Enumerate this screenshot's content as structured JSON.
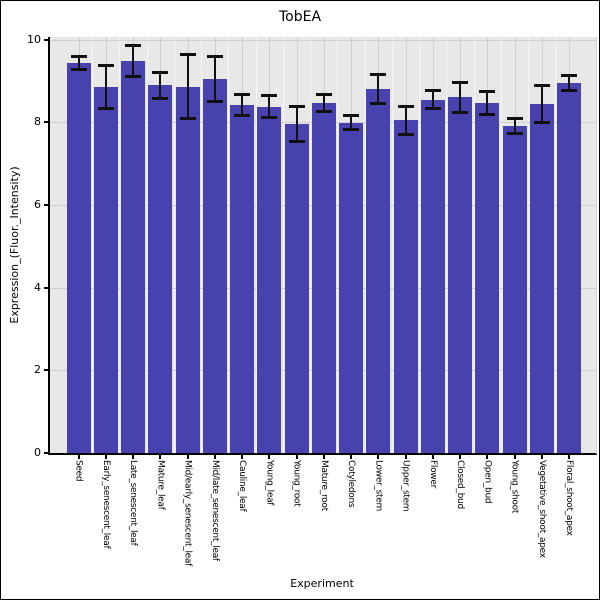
{
  "chart_data": {
    "type": "bar",
    "title": "TobEA",
    "xlabel": "Experiment",
    "ylabel": "Expression_(Fluor._Intensity)",
    "categories": [
      "Seed",
      "Early_senescent_leaf",
      "Late_senescent_leaf",
      "Mature_leaf",
      "Mid/early_senescent_leaf",
      "Mid/late_senescent_leaf",
      "Cauline_leaf",
      "Young_leaf",
      "Young_root",
      "Mature_root",
      "Cotyledons",
      "Lower_stem",
      "Upper_stem",
      "Flower",
      "Closed_bud",
      "Open_bud",
      "Young_shoot",
      "Vegetative_shoot_apex",
      "Floral_shoot_apex"
    ],
    "values": [
      9.43,
      8.86,
      9.48,
      8.89,
      8.86,
      9.05,
      8.42,
      8.38,
      7.96,
      8.46,
      7.99,
      8.81,
      8.05,
      8.54,
      8.6,
      8.46,
      7.91,
      8.44,
      8.94
    ],
    "errors": [
      0.17,
      0.53,
      0.39,
      0.32,
      0.78,
      0.55,
      0.26,
      0.28,
      0.43,
      0.21,
      0.19,
      0.36,
      0.35,
      0.23,
      0.37,
      0.29,
      0.2,
      0.46,
      0.19
    ],
    "ylim": [
      0,
      10.1
    ],
    "yticks": [
      0,
      2,
      4,
      6,
      8,
      10
    ],
    "grid": true,
    "legend": false,
    "error_bars": true,
    "colors": {
      "bar": "#4842ae",
      "error": "#111111",
      "panel_bg": "#e8e8e8",
      "grid_major": "#d0d0d0",
      "grid_minor": "#f4f4f4",
      "axis": "#000000",
      "text": "#000000"
    }
  }
}
